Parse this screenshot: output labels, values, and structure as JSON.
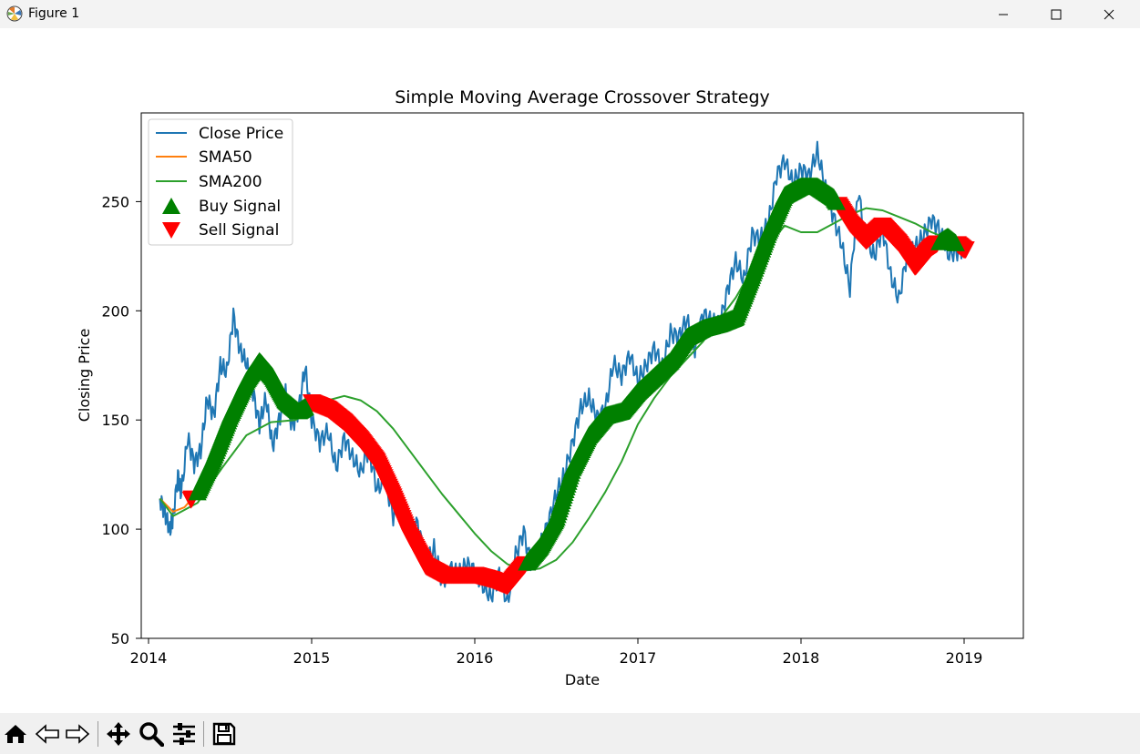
{
  "window": {
    "title": "Figure 1",
    "app_icon": "matplotlib-icon",
    "controls": [
      "minimize-icon",
      "maximize-icon",
      "close-icon"
    ]
  },
  "toolbar": {
    "buttons": [
      "home-icon",
      "back-icon",
      "forward-icon",
      "pan-icon",
      "zoom-icon",
      "configure-subplots-icon",
      "save-icon"
    ]
  },
  "colors": {
    "close": "#1f77b4",
    "sma50": "#ff7f0e",
    "sma200": "#2ca02c",
    "buy": "#008000",
    "sell": "#ff0000"
  },
  "chart_data": {
    "type": "line",
    "title": "Simple Moving Average Crossover Strategy",
    "xlabel": "Date",
    "ylabel": "Closing Price",
    "xlim": [
      2014.0,
      2019.2
    ],
    "ylim": [
      50,
      290
    ],
    "xticks": [
      2014,
      2015,
      2016,
      2017,
      2018,
      2019
    ],
    "xtick_labels": [
      "2014",
      "2015",
      "2016",
      "2017",
      "2018",
      "2019"
    ],
    "yticks": [
      50,
      100,
      150,
      200,
      250
    ],
    "ytick_labels": [
      "50",
      "100",
      "150",
      "200",
      "250"
    ],
    "grid": false,
    "legend_position": "upper-left",
    "legend": [
      "Close Price",
      "SMA50",
      "SMA200",
      "Buy Signal",
      "Sell Signal"
    ],
    "series": [
      {
        "name": "Close Price",
        "x": [
          2014.07,
          2014.1,
          2014.13,
          2014.15,
          2014.18,
          2014.2,
          2014.24,
          2014.28,
          2014.32,
          2014.36,
          2014.4,
          2014.44,
          2014.48,
          2014.52,
          2014.56,
          2014.6,
          2014.64,
          2014.68,
          2014.72,
          2014.76,
          2014.8,
          2014.84,
          2014.88,
          2014.92,
          2014.96,
          2015.0,
          2015.05,
          2015.1,
          2015.15,
          2015.2,
          2015.25,
          2015.3,
          2015.35,
          2015.4,
          2015.45,
          2015.5,
          2015.55,
          2015.6,
          2015.65,
          2015.7,
          2015.75,
          2015.8,
          2015.85,
          2015.9,
          2015.95,
          2016.0,
          2016.05,
          2016.1,
          2016.15,
          2016.2,
          2016.25,
          2016.3,
          2016.35,
          2016.4,
          2016.45,
          2016.5,
          2016.55,
          2016.6,
          2016.65,
          2016.7,
          2016.75,
          2016.8,
          2016.85,
          2016.9,
          2016.95,
          2017.0,
          2017.05,
          2017.1,
          2017.15,
          2017.2,
          2017.25,
          2017.3,
          2017.35,
          2017.4,
          2017.45,
          2017.5,
          2017.55,
          2017.6,
          2017.65,
          2017.7,
          2017.75,
          2017.8,
          2017.85,
          2017.9,
          2017.95,
          2018.0,
          2018.05,
          2018.1,
          2018.15,
          2018.2,
          2018.25,
          2018.3,
          2018.35,
          2018.4,
          2018.45,
          2018.5,
          2018.55,
          2018.6,
          2018.65,
          2018.7,
          2018.75,
          2018.8,
          2018.85,
          2018.9,
          2018.95,
          2019.0
        ],
        "y": [
          114,
          108,
          99,
          105,
          125,
          116,
          142,
          130,
          136,
          160,
          152,
          175,
          172,
          198,
          182,
          176,
          163,
          148,
          160,
          138,
          150,
          162,
          147,
          155,
          174,
          150,
          140,
          145,
          128,
          142,
          133,
          126,
          137,
          118,
          123,
          106,
          114,
          97,
          103,
          84,
          91,
          76,
          82,
          79,
          84,
          81,
          74,
          69,
          80,
          66,
          88,
          99,
          82,
          92,
          103,
          116,
          125,
          140,
          156,
          160,
          151,
          155,
          176,
          170,
          180,
          168,
          175,
          183,
          174,
          190,
          188,
          196,
          182,
          199,
          195,
          193,
          210,
          223,
          214,
          235,
          233,
          240,
          262,
          269,
          258,
          265,
          262,
          273,
          256,
          243,
          230,
          210,
          255,
          232,
          225,
          238,
          216,
          205,
          226,
          229,
          234,
          242,
          237,
          226,
          227,
          229
        ]
      },
      {
        "name": "SMA50",
        "x": [
          2014.07,
          2014.15,
          2014.22,
          2014.3,
          2014.4,
          2014.5,
          2014.6,
          2014.68,
          2014.76,
          2014.84,
          2014.92,
          2015.0,
          2015.1,
          2015.2,
          2015.3,
          2015.4,
          2015.5,
          2015.6,
          2015.7,
          2015.8,
          2015.9,
          2016.0,
          2016.1,
          2016.2,
          2016.3,
          2016.4,
          2016.5,
          2016.6,
          2016.7,
          2016.8,
          2016.9,
          2017.0,
          2017.1,
          2017.2,
          2017.3,
          2017.4,
          2017.5,
          2017.6,
          2017.7,
          2017.8,
          2017.9,
          2018.0,
          2018.1,
          2018.2,
          2018.3,
          2018.4,
          2018.5,
          2018.6,
          2018.7,
          2018.8,
          2018.9,
          2019.0
        ],
        "y": [
          114,
          108,
          110,
          117,
          133,
          152,
          168,
          177,
          170,
          159,
          154,
          158,
          155,
          149,
          141,
          131,
          115,
          97,
          83,
          79,
          79,
          79,
          77,
          74,
          83,
          92,
          105,
          128,
          143,
          152,
          154,
          163,
          170,
          177,
          188,
          192,
          194,
          197,
          216,
          236,
          253,
          257,
          257,
          252,
          240,
          232,
          239,
          231,
          220,
          229,
          234,
          228
        ]
      },
      {
        "name": "SMA200",
        "x": [
          2014.07,
          2014.15,
          2014.3,
          2014.45,
          2014.6,
          2014.75,
          2014.9,
          2015.0,
          2015.1,
          2015.2,
          2015.3,
          2015.4,
          2015.5,
          2015.6,
          2015.7,
          2015.8,
          2015.9,
          2016.0,
          2016.1,
          2016.2,
          2016.3,
          2016.4,
          2016.5,
          2016.6,
          2016.7,
          2016.8,
          2016.9,
          2017.0,
          2017.1,
          2017.2,
          2017.3,
          2017.4,
          2017.5,
          2017.6,
          2017.7,
          2017.8,
          2017.9,
          2018.0,
          2018.1,
          2018.2,
          2018.3,
          2018.4,
          2018.5,
          2018.6,
          2018.7,
          2018.8,
          2018.9,
          2019.0
        ],
        "y": [
          114,
          106,
          112,
          128,
          143,
          149,
          150,
          154,
          159,
          161,
          159,
          154,
          146,
          136,
          126,
          116,
          107,
          98,
          90,
          84,
          81,
          82,
          86,
          94,
          105,
          117,
          131,
          148,
          160,
          170,
          178,
          186,
          196,
          206,
          219,
          230,
          239,
          236,
          236,
          240,
          244,
          247,
          246,
          243,
          240,
          236,
          233,
          230
        ]
      }
    ],
    "signals": {
      "buy_ranges": [
        [
          2014.3,
          2014.96
        ],
        [
          2016.32,
          2018.22
        ],
        [
          2018.85,
          2018.95
        ]
      ],
      "sell_ranges": [
        [
          2014.26,
          2014.27
        ],
        [
          2015.0,
          2016.31
        ],
        [
          2018.23,
          2018.84
        ],
        [
          2018.96,
          2019.01
        ]
      ]
    }
  }
}
